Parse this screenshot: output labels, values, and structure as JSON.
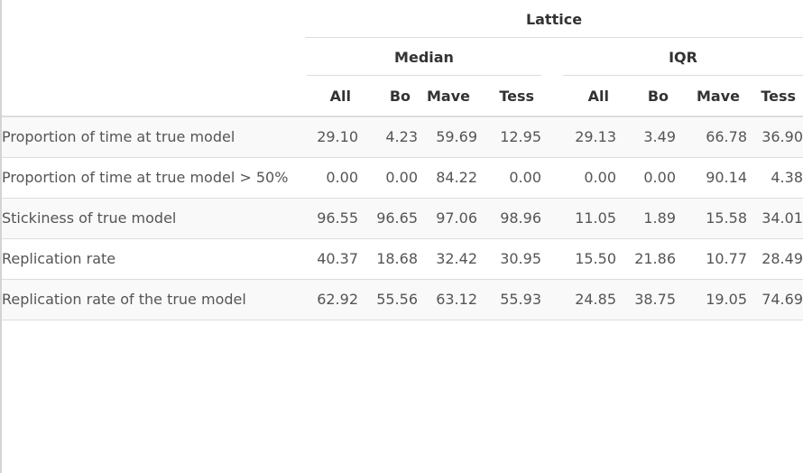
{
  "table": {
    "top_header": "Lattice",
    "group_headers": [
      "Median",
      "IQR"
    ],
    "column_headers": [
      "All",
      "Bo",
      "Mave",
      "Tess",
      "All",
      "Bo",
      "Mave",
      "Tess"
    ],
    "rows": [
      {
        "label": "Proportion of time at true model",
        "median": [
          "29.10",
          "4.23",
          "59.69",
          "12.95"
        ],
        "iqr": [
          "29.13",
          "3.49",
          "66.78",
          "36.90"
        ]
      },
      {
        "label": "Proportion of time at true model > 50%",
        "median": [
          "0.00",
          "0.00",
          "84.22",
          "0.00"
        ],
        "iqr": [
          "0.00",
          "0.00",
          "90.14",
          "4.38"
        ]
      },
      {
        "label": "Stickiness of true model",
        "median": [
          "96.55",
          "96.65",
          "97.06",
          "98.96"
        ],
        "iqr": [
          "11.05",
          "1.89",
          "15.58",
          "34.01"
        ]
      },
      {
        "label": "Replication rate",
        "median": [
          "40.37",
          "18.68",
          "32.42",
          "30.95"
        ],
        "iqr": [
          "15.50",
          "21.86",
          "10.77",
          "28.49"
        ]
      },
      {
        "label": "Replication rate of the true model",
        "median": [
          "62.92",
          "55.56",
          "63.12",
          "55.93"
        ],
        "iqr": [
          "24.85",
          "38.75",
          "19.05",
          "74.69"
        ]
      }
    ]
  }
}
